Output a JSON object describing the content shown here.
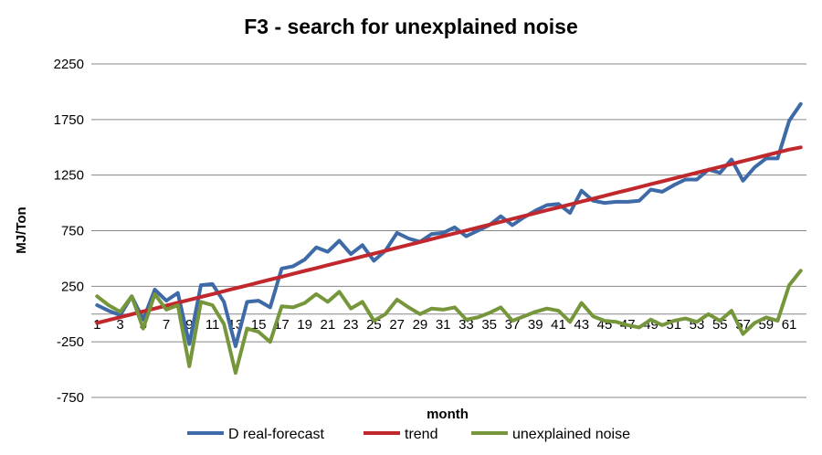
{
  "chart_data": {
    "type": "line",
    "title": "F3 - search for unexplained noise",
    "xlabel": "month",
    "ylabel": "MJ/Ton",
    "x": [
      1,
      2,
      3,
      4,
      5,
      6,
      7,
      8,
      9,
      10,
      11,
      12,
      13,
      14,
      15,
      16,
      17,
      18,
      19,
      20,
      21,
      22,
      23,
      24,
      25,
      26,
      27,
      28,
      29,
      30,
      31,
      32,
      33,
      34,
      35,
      36,
      37,
      38,
      39,
      40,
      41,
      42,
      43,
      44,
      45,
      46,
      47,
      48,
      49,
      50,
      51,
      52,
      53,
      54,
      55,
      56,
      57,
      58,
      59,
      60,
      61,
      62
    ],
    "x_tick_labels": [
      "1",
      "3",
      "5",
      "7",
      "9",
      "11",
      "13",
      "15",
      "17",
      "19",
      "21",
      "23",
      "25",
      "27",
      "29",
      "31",
      "33",
      "35",
      "37",
      "39",
      "41",
      "43",
      "45",
      "47",
      "49",
      "51",
      "53",
      "55",
      "57",
      "59",
      "61"
    ],
    "y_ticks": [
      -750,
      -250,
      250,
      750,
      1250,
      1750,
      2250
    ],
    "ylim": [
      -750,
      2250
    ],
    "grid": true,
    "legend_position": "bottom",
    "series": [
      {
        "name": "D real-forecast",
        "color": "#3E6AA8",
        "values": [
          80,
          30,
          -10,
          160,
          -50,
          220,
          120,
          190,
          -270,
          260,
          270,
          110,
          -290,
          110,
          120,
          60,
          410,
          430,
          490,
          600,
          560,
          660,
          540,
          620,
          480,
          570,
          730,
          680,
          650,
          720,
          730,
          780,
          700,
          750,
          800,
          880,
          800,
          870,
          930,
          980,
          990,
          910,
          1110,
          1020,
          1000,
          1010,
          1010,
          1020,
          1120,
          1100,
          1160,
          1210,
          1210,
          1300,
          1270,
          1390,
          1200,
          1320,
          1400,
          1400,
          1740,
          1890
        ]
      },
      {
        "name": "trend",
        "color": "#C0282D",
        "values": [
          -80,
          -54,
          -28,
          -2,
          24,
          50,
          76,
          102,
          128,
          154,
          180,
          206,
          232,
          258,
          284,
          310,
          336,
          362,
          388,
          414,
          440,
          466,
          492,
          518,
          544,
          570,
          596,
          622,
          648,
          674,
          700,
          726,
          752,
          778,
          804,
          830,
          856,
          882,
          908,
          934,
          960,
          986,
          1012,
          1038,
          1064,
          1090,
          1116,
          1142,
          1168,
          1194,
          1220,
          1246,
          1272,
          1298,
          1324,
          1350,
          1376,
          1402,
          1428,
          1454,
          1480,
          1500
        ]
      },
      {
        "name": "unexplained noise",
        "color": "#76963B",
        "values": [
          160,
          80,
          20,
          160,
          -130,
          180,
          40,
          80,
          -470,
          110,
          80,
          -90,
          -530,
          -130,
          -160,
          -250,
          70,
          60,
          100,
          180,
          110,
          200,
          50,
          110,
          -60,
          0,
          130,
          60,
          0,
          50,
          40,
          60,
          -50,
          -30,
          10,
          60,
          -60,
          -20,
          20,
          50,
          30,
          -70,
          100,
          -20,
          -60,
          -70,
          -100,
          -120,
          -50,
          -100,
          -60,
          -40,
          -70,
          0,
          -60,
          30,
          -180,
          -80,
          -30,
          -60,
          260,
          390
        ]
      }
    ]
  }
}
